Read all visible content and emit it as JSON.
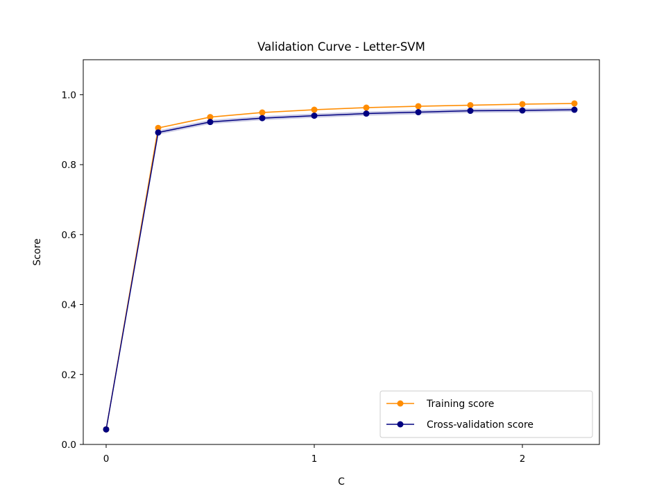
{
  "chart_data": {
    "type": "line",
    "title": "Validation Curve - Letter-SVM",
    "xlabel": "C",
    "ylabel": "Score",
    "xlim": [
      -0.11,
      2.37
    ],
    "ylim": [
      0.0,
      1.1
    ],
    "x_ticks": [
      0,
      1,
      2
    ],
    "x_tick_labels": [
      "0",
      "1",
      "2"
    ],
    "y_ticks": [
      0.0,
      0.2,
      0.4,
      0.6,
      0.8,
      1.0
    ],
    "y_tick_labels": [
      "0.0",
      "0.2",
      "0.4",
      "0.6",
      "0.8",
      "1.0"
    ],
    "grid": false,
    "legend_position": "lower-right",
    "x": [
      0,
      0.25,
      0.5,
      0.75,
      1.0,
      1.25,
      1.5,
      1.75,
      2.0,
      2.25
    ],
    "series": [
      {
        "name": "Training score",
        "color": "#ff8c00",
        "values": [
          0.043,
          0.905,
          0.936,
          0.949,
          0.957,
          0.963,
          0.967,
          0.97,
          0.973,
          0.975
        ],
        "band": 0.002
      },
      {
        "name": "Cross-validation score",
        "color": "#000080",
        "values": [
          0.043,
          0.892,
          0.922,
          0.933,
          0.94,
          0.946,
          0.95,
          0.954,
          0.955,
          0.957
        ],
        "band": 0.006
      }
    ]
  }
}
